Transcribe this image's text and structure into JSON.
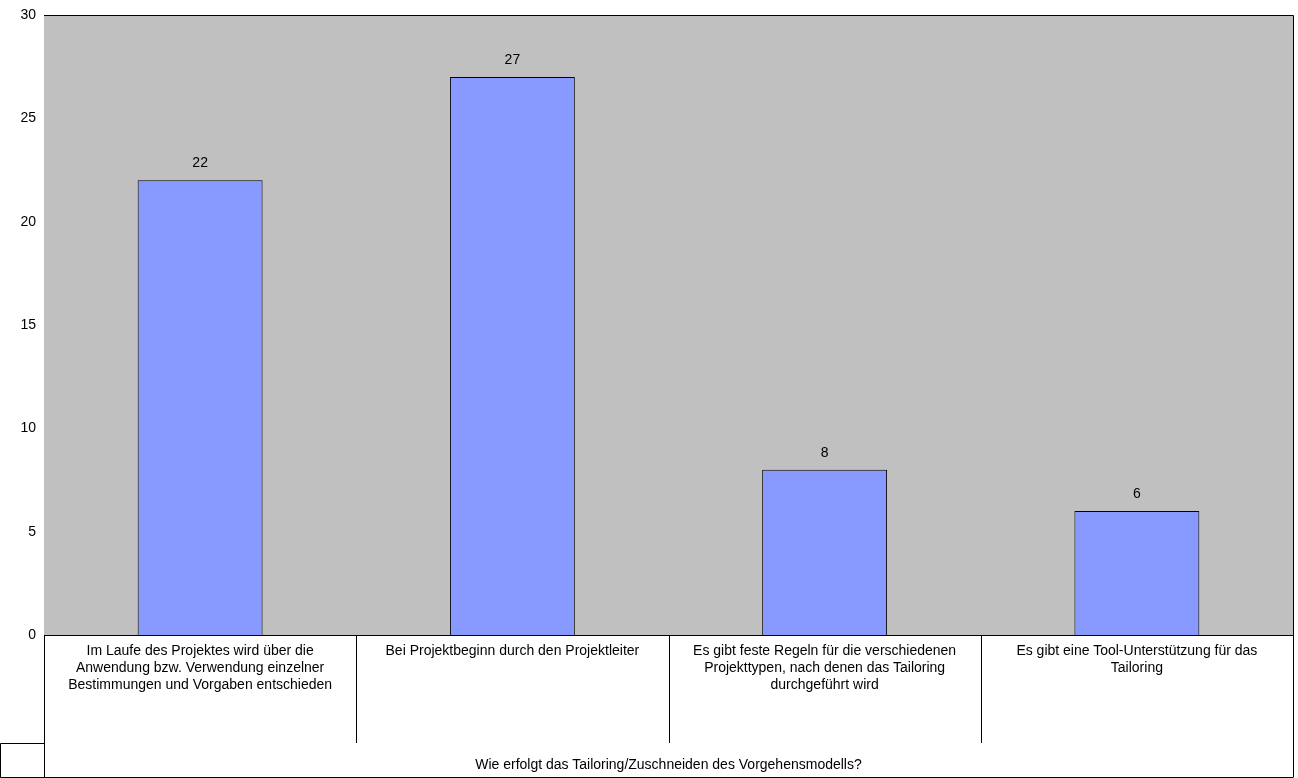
{
  "chart_data": {
    "type": "bar",
    "xlabel": "Wie erfolgt das Tailoring/Zuschneiden des Vorgehensmodells?",
    "categories": [
      "Im Laufe des Projektes wird über die Anwendung bzw. Verwendung einzelner Bestimmungen und Vorgaben entschieden",
      "Bei Projektbeginn durch den Projektleiter",
      "Es gibt feste Regeln für die verschiedenen Projekttypen, nach denen das Tailoring durchgeführt wird",
      "Es gibt eine Tool-Unterstützung für das Tailoring"
    ],
    "values": [
      22,
      27,
      8,
      6
    ],
    "color": "#8899ff",
    "ylim": [
      0,
      30
    ],
    "yticks": [
      0,
      5,
      10,
      15,
      20,
      25,
      30
    ],
    "grid": false,
    "legend": false,
    "data_labels": true
  }
}
